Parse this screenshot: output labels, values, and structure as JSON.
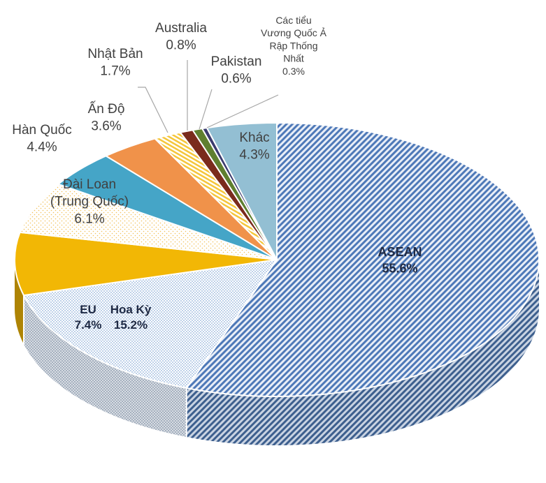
{
  "chart_data": {
    "type": "pie",
    "style": "3d-exploded-pie",
    "title": "",
    "legend": "none",
    "slices": [
      {
        "label": "ASEAN",
        "value": 55.6,
        "value_label": "55.6%",
        "color": "#4e79b8",
        "fill": "diagonal-hatch",
        "bold": true
      },
      {
        "label": "Hoa Kỳ",
        "value": 15.2,
        "value_label": "15.2%",
        "color": "#9bb7dc",
        "fill": "dotted",
        "bold": true
      },
      {
        "label": "EU",
        "value": 7.4,
        "value_label": "7.4%",
        "color": "#f2b705",
        "fill": "solid",
        "bold": true
      },
      {
        "label": "Đài Loan (Trung Quốc)",
        "value": 6.1,
        "value_label": "6.1%",
        "color": "#f6d27a",
        "fill": "dotted-light",
        "bold": false
      },
      {
        "label": "Hàn Quốc",
        "value": 4.4,
        "value_label": "4.4%",
        "color": "#45a5c7",
        "fill": "solid",
        "bold": false
      },
      {
        "label": "Ấn Độ",
        "value": 3.6,
        "value_label": "3.6%",
        "color": "#f0924a",
        "fill": "solid",
        "bold": false
      },
      {
        "label": "Nhật Bản",
        "value": 1.7,
        "value_label": "1.7%",
        "color": "#f5c63a",
        "fill": "stripes",
        "bold": false
      },
      {
        "label": "Australia",
        "value": 0.8,
        "value_label": "0.8%",
        "color": "#7a2b1c",
        "fill": "solid",
        "bold": false
      },
      {
        "label": "Pakistan",
        "value": 0.6,
        "value_label": "0.6%",
        "color": "#5f7f2f",
        "fill": "solid",
        "bold": false
      },
      {
        "label": "Các tiểu Vương Quốc Ả Rập Thống Nhất",
        "value": 0.3,
        "value_label": "0.3%",
        "color": "#3b3b6e",
        "fill": "solid",
        "bold": false
      },
      {
        "label": "Khác",
        "value": 4.3,
        "value_label": "4.3%",
        "color": "#93bfd3",
        "fill": "solid",
        "bold": false
      }
    ]
  }
}
